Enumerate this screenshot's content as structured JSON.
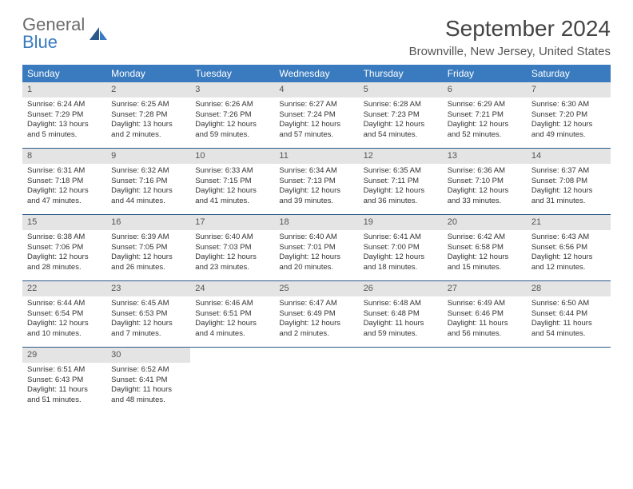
{
  "logo": {
    "general": "General",
    "blue": "Blue"
  },
  "title": "September 2024",
  "location": "Brownville, New Jersey, United States",
  "colors": {
    "header_bg": "#3a7bbf",
    "daynum_bg": "#e4e4e4",
    "row_border": "#2a5a8a"
  },
  "weekdays": [
    "Sunday",
    "Monday",
    "Tuesday",
    "Wednesday",
    "Thursday",
    "Friday",
    "Saturday"
  ],
  "weeks": [
    [
      {
        "d": "1",
        "sr": "Sunrise: 6:24 AM",
        "ss": "Sunset: 7:29 PM",
        "dl1": "Daylight: 13 hours",
        "dl2": "and 5 minutes."
      },
      {
        "d": "2",
        "sr": "Sunrise: 6:25 AM",
        "ss": "Sunset: 7:28 PM",
        "dl1": "Daylight: 13 hours",
        "dl2": "and 2 minutes."
      },
      {
        "d": "3",
        "sr": "Sunrise: 6:26 AM",
        "ss": "Sunset: 7:26 PM",
        "dl1": "Daylight: 12 hours",
        "dl2": "and 59 minutes."
      },
      {
        "d": "4",
        "sr": "Sunrise: 6:27 AM",
        "ss": "Sunset: 7:24 PM",
        "dl1": "Daylight: 12 hours",
        "dl2": "and 57 minutes."
      },
      {
        "d": "5",
        "sr": "Sunrise: 6:28 AM",
        "ss": "Sunset: 7:23 PM",
        "dl1": "Daylight: 12 hours",
        "dl2": "and 54 minutes."
      },
      {
        "d": "6",
        "sr": "Sunrise: 6:29 AM",
        "ss": "Sunset: 7:21 PM",
        "dl1": "Daylight: 12 hours",
        "dl2": "and 52 minutes."
      },
      {
        "d": "7",
        "sr": "Sunrise: 6:30 AM",
        "ss": "Sunset: 7:20 PM",
        "dl1": "Daylight: 12 hours",
        "dl2": "and 49 minutes."
      }
    ],
    [
      {
        "d": "8",
        "sr": "Sunrise: 6:31 AM",
        "ss": "Sunset: 7:18 PM",
        "dl1": "Daylight: 12 hours",
        "dl2": "and 47 minutes."
      },
      {
        "d": "9",
        "sr": "Sunrise: 6:32 AM",
        "ss": "Sunset: 7:16 PM",
        "dl1": "Daylight: 12 hours",
        "dl2": "and 44 minutes."
      },
      {
        "d": "10",
        "sr": "Sunrise: 6:33 AM",
        "ss": "Sunset: 7:15 PM",
        "dl1": "Daylight: 12 hours",
        "dl2": "and 41 minutes."
      },
      {
        "d": "11",
        "sr": "Sunrise: 6:34 AM",
        "ss": "Sunset: 7:13 PM",
        "dl1": "Daylight: 12 hours",
        "dl2": "and 39 minutes."
      },
      {
        "d": "12",
        "sr": "Sunrise: 6:35 AM",
        "ss": "Sunset: 7:11 PM",
        "dl1": "Daylight: 12 hours",
        "dl2": "and 36 minutes."
      },
      {
        "d": "13",
        "sr": "Sunrise: 6:36 AM",
        "ss": "Sunset: 7:10 PM",
        "dl1": "Daylight: 12 hours",
        "dl2": "and 33 minutes."
      },
      {
        "d": "14",
        "sr": "Sunrise: 6:37 AM",
        "ss": "Sunset: 7:08 PM",
        "dl1": "Daylight: 12 hours",
        "dl2": "and 31 minutes."
      }
    ],
    [
      {
        "d": "15",
        "sr": "Sunrise: 6:38 AM",
        "ss": "Sunset: 7:06 PM",
        "dl1": "Daylight: 12 hours",
        "dl2": "and 28 minutes."
      },
      {
        "d": "16",
        "sr": "Sunrise: 6:39 AM",
        "ss": "Sunset: 7:05 PM",
        "dl1": "Daylight: 12 hours",
        "dl2": "and 26 minutes."
      },
      {
        "d": "17",
        "sr": "Sunrise: 6:40 AM",
        "ss": "Sunset: 7:03 PM",
        "dl1": "Daylight: 12 hours",
        "dl2": "and 23 minutes."
      },
      {
        "d": "18",
        "sr": "Sunrise: 6:40 AM",
        "ss": "Sunset: 7:01 PM",
        "dl1": "Daylight: 12 hours",
        "dl2": "and 20 minutes."
      },
      {
        "d": "19",
        "sr": "Sunrise: 6:41 AM",
        "ss": "Sunset: 7:00 PM",
        "dl1": "Daylight: 12 hours",
        "dl2": "and 18 minutes."
      },
      {
        "d": "20",
        "sr": "Sunrise: 6:42 AM",
        "ss": "Sunset: 6:58 PM",
        "dl1": "Daylight: 12 hours",
        "dl2": "and 15 minutes."
      },
      {
        "d": "21",
        "sr": "Sunrise: 6:43 AM",
        "ss": "Sunset: 6:56 PM",
        "dl1": "Daylight: 12 hours",
        "dl2": "and 12 minutes."
      }
    ],
    [
      {
        "d": "22",
        "sr": "Sunrise: 6:44 AM",
        "ss": "Sunset: 6:54 PM",
        "dl1": "Daylight: 12 hours",
        "dl2": "and 10 minutes."
      },
      {
        "d": "23",
        "sr": "Sunrise: 6:45 AM",
        "ss": "Sunset: 6:53 PM",
        "dl1": "Daylight: 12 hours",
        "dl2": "and 7 minutes."
      },
      {
        "d": "24",
        "sr": "Sunrise: 6:46 AM",
        "ss": "Sunset: 6:51 PM",
        "dl1": "Daylight: 12 hours",
        "dl2": "and 4 minutes."
      },
      {
        "d": "25",
        "sr": "Sunrise: 6:47 AM",
        "ss": "Sunset: 6:49 PM",
        "dl1": "Daylight: 12 hours",
        "dl2": "and 2 minutes."
      },
      {
        "d": "26",
        "sr": "Sunrise: 6:48 AM",
        "ss": "Sunset: 6:48 PM",
        "dl1": "Daylight: 11 hours",
        "dl2": "and 59 minutes."
      },
      {
        "d": "27",
        "sr": "Sunrise: 6:49 AM",
        "ss": "Sunset: 6:46 PM",
        "dl1": "Daylight: 11 hours",
        "dl2": "and 56 minutes."
      },
      {
        "d": "28",
        "sr": "Sunrise: 6:50 AM",
        "ss": "Sunset: 6:44 PM",
        "dl1": "Daylight: 11 hours",
        "dl2": "and 54 minutes."
      }
    ],
    [
      {
        "d": "29",
        "sr": "Sunrise: 6:51 AM",
        "ss": "Sunset: 6:43 PM",
        "dl1": "Daylight: 11 hours",
        "dl2": "and 51 minutes."
      },
      {
        "d": "30",
        "sr": "Sunrise: 6:52 AM",
        "ss": "Sunset: 6:41 PM",
        "dl1": "Daylight: 11 hours",
        "dl2": "and 48 minutes."
      },
      null,
      null,
      null,
      null,
      null
    ]
  ]
}
